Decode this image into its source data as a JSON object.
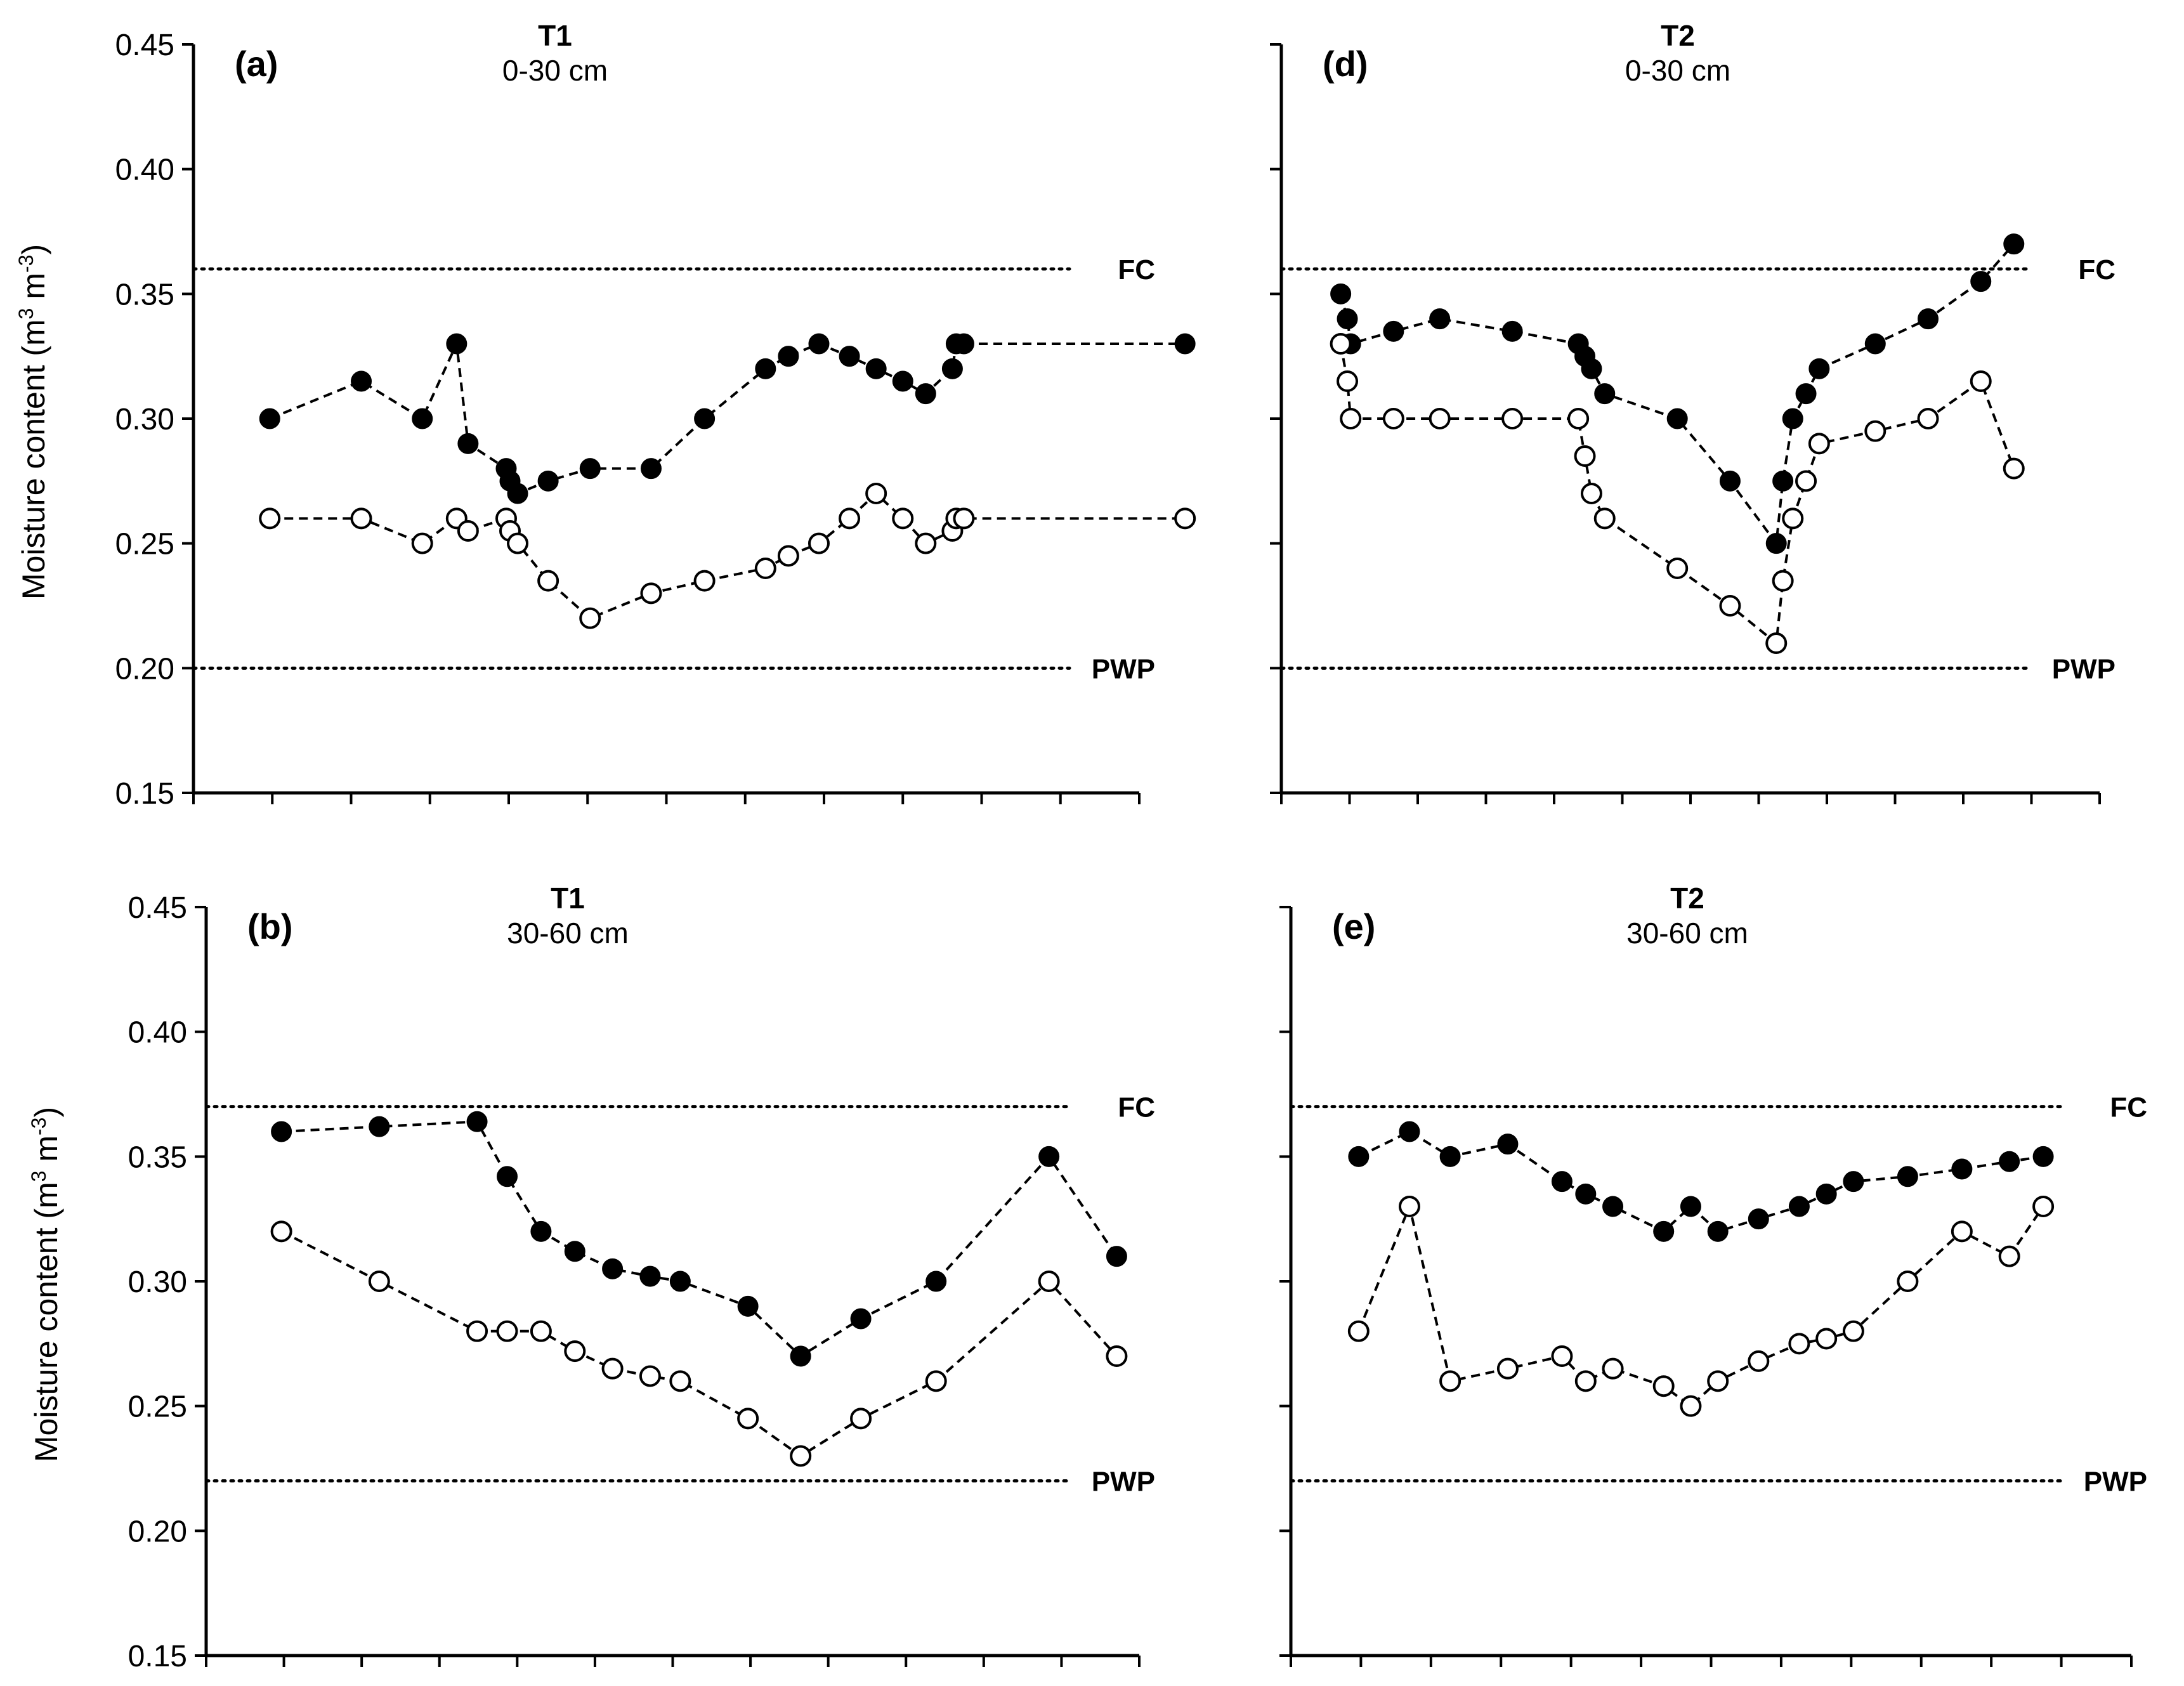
{
  "chart_data": [
    {
      "id": "a",
      "type": "line",
      "panel_label": "(a)",
      "title": "T1",
      "subtitle": "0-30 cm",
      "ylabel": "Moisture content (m3 m-3)",
      "ylim": [
        0.15,
        0.45
      ],
      "yticks": [
        0.15,
        0.2,
        0.25,
        0.3,
        0.35,
        0.4,
        0.45
      ],
      "ytick_labels": [
        "0.15",
        "0.20",
        "0.25",
        "0.30",
        "0.35",
        "0.40",
        "0.45"
      ],
      "xlim": [
        0,
        12.4
      ],
      "x_tick_count": 13,
      "reference_lines": [
        {
          "label": "FC",
          "value": 0.36
        },
        {
          "label": "PWP",
          "value": 0.2
        }
      ],
      "series": [
        {
          "name": "filled",
          "marker": "filled",
          "x": [
            1.0,
            2.2,
            3.0,
            3.45,
            3.6,
            4.1,
            4.15,
            4.25,
            4.65,
            5.2,
            6.0,
            6.7,
            7.5,
            7.8,
            8.2,
            8.6,
            8.95,
            9.3,
            9.6,
            9.95,
            10.0,
            10.1,
            13.0
          ],
          "y": [
            0.3,
            0.315,
            0.3,
            0.33,
            0.29,
            0.28,
            0.275,
            0.27,
            0.275,
            0.28,
            0.28,
            0.3,
            0.32,
            0.325,
            0.33,
            0.325,
            0.32,
            0.315,
            0.31,
            0.32,
            0.33,
            0.33,
            0.33
          ]
        },
        {
          "name": "open",
          "marker": "open",
          "x": [
            1.0,
            2.2,
            3.0,
            3.45,
            3.6,
            4.1,
            4.15,
            4.25,
            4.65,
            5.2,
            6.0,
            6.7,
            7.5,
            7.8,
            8.2,
            8.6,
            8.95,
            9.3,
            9.6,
            9.95,
            10.0,
            10.1,
            13.0
          ],
          "y": [
            0.26,
            0.26,
            0.25,
            0.26,
            0.255,
            0.26,
            0.255,
            0.25,
            0.235,
            0.22,
            0.23,
            0.235,
            0.24,
            0.245,
            0.25,
            0.26,
            0.27,
            0.26,
            0.25,
            0.255,
            0.26,
            0.26,
            0.26
          ]
        }
      ]
    },
    {
      "id": "d",
      "type": "line",
      "panel_label": "(d)",
      "title": "T2",
      "subtitle": "0-30 cm",
      "ylabel": "",
      "ylim": [
        0.15,
        0.45
      ],
      "yticks": [
        0.15,
        0.2,
        0.25,
        0.3,
        0.35,
        0.4,
        0.45
      ],
      "ytick_labels": [],
      "xlim": [
        0,
        12.4
      ],
      "x_tick_count": 13,
      "reference_lines": [
        {
          "label": "FC",
          "value": 0.36
        },
        {
          "label": "PWP",
          "value": 0.2
        }
      ],
      "series": [
        {
          "name": "filled",
          "marker": "filled",
          "x": [
            0.9,
            1.0,
            1.05,
            1.7,
            2.4,
            3.5,
            4.5,
            4.6,
            4.7,
            4.9,
            6.0,
            6.8,
            7.5,
            7.6,
            7.75,
            7.95,
            8.15,
            9.0,
            9.8,
            10.6,
            11.1
          ],
          "y": [
            0.35,
            0.34,
            0.33,
            0.335,
            0.34,
            0.335,
            0.33,
            0.325,
            0.32,
            0.31,
            0.3,
            0.275,
            0.25,
            0.275,
            0.3,
            0.31,
            0.32,
            0.33,
            0.34,
            0.355,
            0.37
          ]
        },
        {
          "name": "open",
          "marker": "open",
          "x": [
            0.9,
            1.0,
            1.05,
            1.7,
            2.4,
            3.5,
            4.5,
            4.6,
            4.7,
            4.9,
            6.0,
            6.8,
            7.5,
            7.6,
            7.75,
            7.95,
            8.15,
            9.0,
            9.8,
            10.6,
            11.1
          ],
          "y": [
            0.33,
            0.315,
            0.3,
            0.3,
            0.3,
            0.3,
            0.3,
            0.285,
            0.27,
            0.26,
            0.24,
            0.225,
            0.21,
            0.235,
            0.26,
            0.275,
            0.29,
            0.295,
            0.3,
            0.315,
            0.28
          ]
        }
      ]
    },
    {
      "id": "b",
      "type": "line",
      "panel_label": "(b)",
      "title": "T1",
      "subtitle": "30-60 cm",
      "ylabel": "Moisture content (m3 m-3)",
      "ylim": [
        0.15,
        0.45
      ],
      "yticks": [
        0.15,
        0.2,
        0.25,
        0.3,
        0.35,
        0.4,
        0.45
      ],
      "ytick_labels": [
        "0.15",
        "0.20",
        "0.25",
        "0.30",
        "0.35",
        "0.40",
        "0.45"
      ],
      "xlim": [
        0,
        12.4
      ],
      "x_tick_count": 13,
      "reference_lines": [
        {
          "label": "FC",
          "value": 0.37
        },
        {
          "label": "PWP",
          "value": 0.22
        }
      ],
      "series": [
        {
          "name": "filled",
          "marker": "filled",
          "x": [
            1.0,
            2.3,
            3.6,
            4.0,
            4.45,
            4.9,
            5.4,
            5.9,
            6.3,
            7.2,
            7.9,
            8.7,
            9.7,
            11.2,
            12.1
          ],
          "y": [
            0.36,
            0.362,
            0.364,
            0.342,
            0.32,
            0.312,
            0.305,
            0.302,
            0.3,
            0.29,
            0.27,
            0.285,
            0.3,
            0.35,
            0.31
          ]
        },
        {
          "name": "open",
          "marker": "open",
          "x": [
            1.0,
            2.3,
            3.6,
            4.0,
            4.45,
            4.9,
            5.4,
            5.9,
            6.3,
            7.2,
            7.9,
            8.7,
            9.7,
            11.2,
            12.1
          ],
          "y": [
            0.32,
            0.3,
            0.28,
            0.28,
            0.28,
            0.272,
            0.265,
            0.262,
            0.26,
            0.245,
            0.23,
            0.245,
            0.26,
            0.3,
            0.27
          ]
        }
      ]
    },
    {
      "id": "e",
      "type": "line",
      "panel_label": "(e)",
      "title": "T2",
      "subtitle": "30-60 cm",
      "ylabel": "",
      "ylim": [
        0.15,
        0.45
      ],
      "yticks": [
        0.15,
        0.2,
        0.25,
        0.3,
        0.35,
        0.4,
        0.45
      ],
      "ytick_labels": [],
      "xlim": [
        0,
        12.4
      ],
      "x_tick_count": 13,
      "reference_lines": [
        {
          "label": "FC",
          "value": 0.37
        },
        {
          "label": "PWP",
          "value": 0.22
        }
      ],
      "series": [
        {
          "name": "filled",
          "marker": "filled",
          "x": [
            1.0,
            1.75,
            2.35,
            3.2,
            4.0,
            4.35,
            4.75,
            5.5,
            5.9,
            6.3,
            6.9,
            7.5,
            7.9,
            8.3,
            9.1,
            9.9,
            10.6,
            11.1
          ],
          "y": [
            0.35,
            0.36,
            0.35,
            0.355,
            0.34,
            0.335,
            0.33,
            0.32,
            0.33,
            0.32,
            0.325,
            0.33,
            0.335,
            0.34,
            0.342,
            0.345,
            0.348,
            0.35
          ]
        },
        {
          "name": "open",
          "marker": "open",
          "x": [
            1.0,
            1.75,
            2.35,
            3.2,
            4.0,
            4.35,
            4.75,
            5.5,
            5.9,
            6.3,
            6.9,
            7.5,
            7.9,
            8.3,
            9.1,
            9.9,
            10.6,
            11.1
          ],
          "y": [
            0.28,
            0.33,
            0.26,
            0.265,
            0.27,
            0.26,
            0.265,
            0.258,
            0.25,
            0.26,
            0.268,
            0.275,
            0.277,
            0.28,
            0.3,
            0.32,
            0.31,
            0.33
          ]
        }
      ]
    }
  ]
}
